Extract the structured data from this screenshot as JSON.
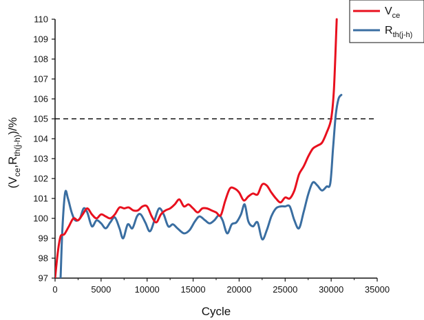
{
  "chart_data": {
    "type": "line",
    "xlabel": "Cycle",
    "ylabel_parts": [
      "(V",
      "ce",
      ",R",
      "th(j-h)",
      ")/%"
    ],
    "xlim": [
      0,
      35000
    ],
    "ylim": [
      97,
      110
    ],
    "x_ticks": [
      0,
      5000,
      10000,
      15000,
      20000,
      25000,
      30000,
      35000
    ],
    "y_ticks": [
      97,
      98,
      99,
      100,
      101,
      102,
      103,
      104,
      105,
      106,
      107,
      108,
      109,
      110
    ],
    "grid": false,
    "legend_position": "top-right",
    "threshold": {
      "y": 105,
      "style": "dashed",
      "color": "#111111"
    },
    "series": [
      {
        "name_main": "V",
        "name_sub": "ce",
        "color": "#e8101e",
        "points": [
          [
            0,
            97.0
          ],
          [
            300,
            98.3
          ],
          [
            600,
            99.1
          ],
          [
            1000,
            99.2
          ],
          [
            1500,
            99.6
          ],
          [
            2000,
            100.0
          ],
          [
            2500,
            99.9
          ],
          [
            3000,
            100.2
          ],
          [
            3500,
            100.5
          ],
          [
            4000,
            100.2
          ],
          [
            4500,
            100.0
          ],
          [
            5000,
            100.2
          ],
          [
            5500,
            100.1
          ],
          [
            6000,
            100.0
          ],
          [
            6500,
            100.2
          ],
          [
            7000,
            100.55
          ],
          [
            7500,
            100.5
          ],
          [
            8000,
            100.55
          ],
          [
            8500,
            100.4
          ],
          [
            9000,
            100.4
          ],
          [
            9500,
            100.6
          ],
          [
            10000,
            100.6
          ],
          [
            10500,
            100.1
          ],
          [
            11000,
            99.8
          ],
          [
            11500,
            100.2
          ],
          [
            12000,
            100.4
          ],
          [
            12500,
            100.5
          ],
          [
            13000,
            100.7
          ],
          [
            13500,
            100.95
          ],
          [
            14000,
            100.6
          ],
          [
            14500,
            100.7
          ],
          [
            15000,
            100.5
          ],
          [
            15500,
            100.3
          ],
          [
            16000,
            100.5
          ],
          [
            16500,
            100.5
          ],
          [
            17000,
            100.4
          ],
          [
            17500,
            100.3
          ],
          [
            18000,
            100.15
          ],
          [
            18500,
            100.9
          ],
          [
            19000,
            101.5
          ],
          [
            19500,
            101.5
          ],
          [
            20000,
            101.3
          ],
          [
            20500,
            100.9
          ],
          [
            21000,
            101.1
          ],
          [
            21500,
            101.25
          ],
          [
            22000,
            101.2
          ],
          [
            22500,
            101.7
          ],
          [
            23000,
            101.65
          ],
          [
            23500,
            101.3
          ],
          [
            24000,
            101.0
          ],
          [
            24500,
            100.8
          ],
          [
            25000,
            101.05
          ],
          [
            25500,
            101.0
          ],
          [
            26000,
            101.4
          ],
          [
            26500,
            102.2
          ],
          [
            27000,
            102.6
          ],
          [
            27500,
            103.1
          ],
          [
            28000,
            103.5
          ],
          [
            28500,
            103.65
          ],
          [
            29000,
            103.8
          ],
          [
            29500,
            104.3
          ],
          [
            30000,
            105.0
          ],
          [
            30300,
            106.5
          ],
          [
            30600,
            110.0
          ]
        ]
      },
      {
        "name_main": "R",
        "name_sub": "th(j-h)",
        "color": "#3a6ea1",
        "points": [
          [
            600,
            97.0
          ],
          [
            800,
            99.5
          ],
          [
            1100,
            101.3
          ],
          [
            1400,
            101.0
          ],
          [
            1800,
            100.3
          ],
          [
            2200,
            99.9
          ],
          [
            2700,
            100.0
          ],
          [
            3100,
            100.5
          ],
          [
            3500,
            100.3
          ],
          [
            4000,
            99.6
          ],
          [
            4500,
            99.9
          ],
          [
            5000,
            99.75
          ],
          [
            5500,
            99.5
          ],
          [
            6000,
            99.8
          ],
          [
            6500,
            100.05
          ],
          [
            7000,
            99.5
          ],
          [
            7400,
            99.0
          ],
          [
            7900,
            99.7
          ],
          [
            8400,
            99.5
          ],
          [
            8900,
            100.1
          ],
          [
            9300,
            100.2
          ],
          [
            9800,
            99.8
          ],
          [
            10300,
            99.35
          ],
          [
            10800,
            99.9
          ],
          [
            11300,
            100.5
          ],
          [
            11800,
            100.2
          ],
          [
            12300,
            99.6
          ],
          [
            12800,
            99.7
          ],
          [
            13300,
            99.5
          ],
          [
            14000,
            99.25
          ],
          [
            14600,
            99.4
          ],
          [
            15200,
            99.85
          ],
          [
            15700,
            100.1
          ],
          [
            16300,
            99.9
          ],
          [
            16800,
            99.75
          ],
          [
            17300,
            99.9
          ],
          [
            17800,
            100.15
          ],
          [
            18200,
            99.9
          ],
          [
            18700,
            99.25
          ],
          [
            19200,
            99.7
          ],
          [
            19700,
            99.8
          ],
          [
            20200,
            100.2
          ],
          [
            20600,
            100.7
          ],
          [
            21000,
            99.85
          ],
          [
            21500,
            99.6
          ],
          [
            22000,
            99.8
          ],
          [
            22500,
            98.95
          ],
          [
            23000,
            99.4
          ],
          [
            23500,
            100.1
          ],
          [
            24000,
            100.5
          ],
          [
            24500,
            100.6
          ],
          [
            25000,
            100.6
          ],
          [
            25500,
            100.6
          ],
          [
            26000,
            99.9
          ],
          [
            26500,
            99.5
          ],
          [
            27000,
            100.3
          ],
          [
            27500,
            101.2
          ],
          [
            28000,
            101.8
          ],
          [
            28500,
            101.65
          ],
          [
            29000,
            101.4
          ],
          [
            29500,
            101.6
          ],
          [
            29900,
            101.75
          ],
          [
            30200,
            103.5
          ],
          [
            30500,
            105.2
          ],
          [
            30800,
            106.0
          ],
          [
            31100,
            106.2
          ]
        ]
      }
    ]
  }
}
